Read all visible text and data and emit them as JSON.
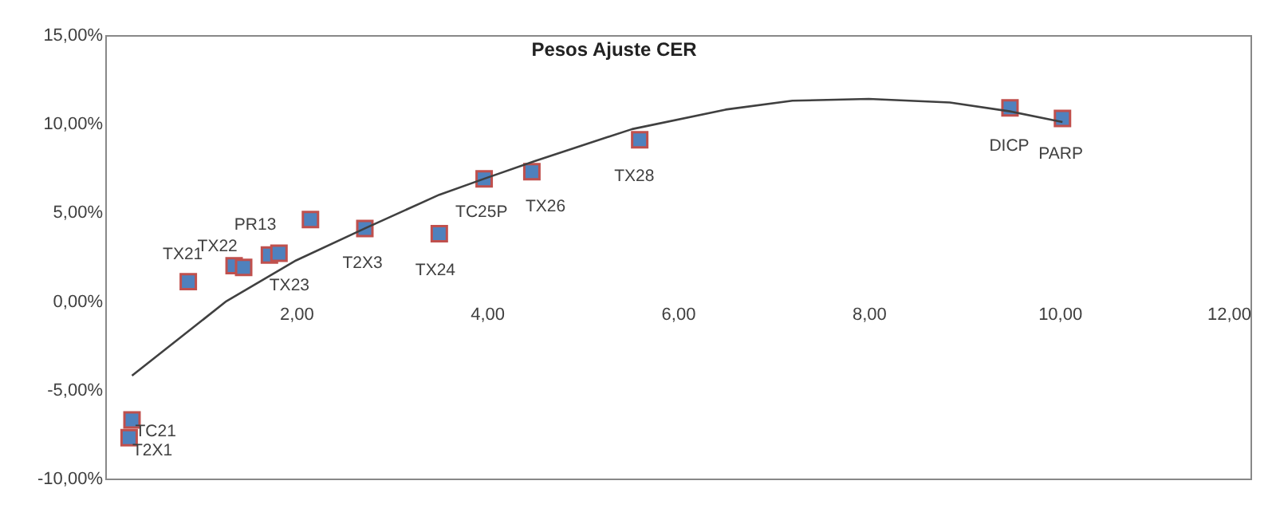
{
  "chart_data": {
    "type": "scatter",
    "title": "Pesos Ajuste CER",
    "xlim": [
      0,
      12
    ],
    "xticks": [
      {
        "value": 2,
        "label": "2,00"
      },
      {
        "value": 4,
        "label": "4,00"
      },
      {
        "value": 6,
        "label": "6,00"
      },
      {
        "value": 8,
        "label": "8,00"
      },
      {
        "value": 10,
        "label": "10,00"
      },
      {
        "value": 12,
        "label": "12,00"
      }
    ],
    "ylim": [
      -10,
      15
    ],
    "yticks": [
      {
        "value": -10,
        "label": "-10,00%"
      },
      {
        "value": -5,
        "label": "-5,00%"
      },
      {
        "value": 0,
        "label": "0,00%"
      },
      {
        "value": 5,
        "label": "5,00%"
      },
      {
        "value": 10,
        "label": "10,00%"
      },
      {
        "value": 15,
        "label": "15,00%"
      }
    ],
    "grid": false,
    "series": [
      {
        "marker": "square",
        "color": "#4f81bd",
        "x": [
          0.28,
          0.25,
          0.87,
          1.35,
          1.45,
          1.72,
          1.82,
          2.15,
          2.72,
          3.5,
          3.97,
          4.47,
          5.6,
          9.48,
          10.03
        ],
        "values": [
          -6.7,
          -7.7,
          1.1,
          2.0,
          1.9,
          2.6,
          2.7,
          4.6,
          4.1,
          3.8,
          6.9,
          7.3,
          9.1,
          10.9,
          10.3
        ],
        "value_labels": [
          "TC21",
          "T2X1",
          "TX21",
          "TX22",
          null,
          "PR13",
          "TX23",
          null,
          "T2X3",
          "TX24",
          "TC25P",
          "TX26",
          "TX28",
          "DICP",
          "PARP"
        ]
      },
      {
        "type": "line",
        "color": "#404040",
        "x": [
          0.28,
          1.27,
          2.0,
          2.72,
          3.5,
          3.97,
          4.5,
          5.52,
          6.5,
          7.2,
          8.0,
          8.85,
          9.48,
          10.03
        ],
        "values": [
          -4.2,
          0,
          2.3,
          4.1,
          6.0,
          6.9,
          7.9,
          9.7,
          10.8,
          11.3,
          11.4,
          11.2,
          10.7,
          10.1
        ]
      }
    ]
  }
}
